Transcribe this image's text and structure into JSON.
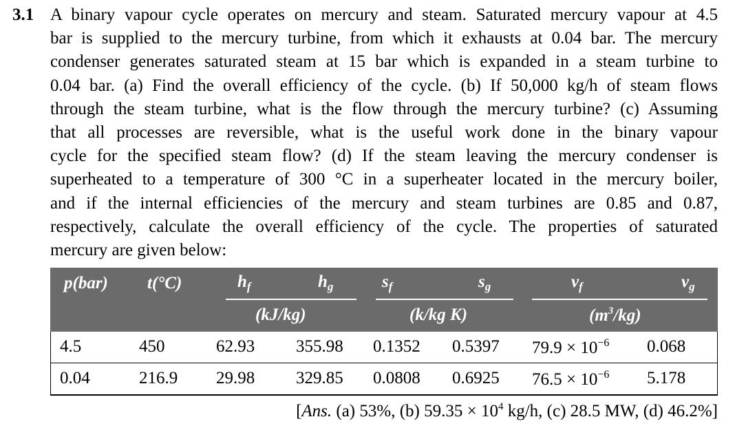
{
  "problem": {
    "number": "3.1",
    "lines": [
      "A binary vapour cycle operates on mercury and steam. Saturated mercury vapour at 4.5",
      "bar is supplied to the mercury turbine, from which it exhausts at 0.04 bar. The mercury",
      "condenser generates saturated steam at 15 bar which is expanded in a steam turbine to",
      "0.04 bar. (a) Find the overall efficiency of the cycle. (b) If 50,000 kg/h of steam flows",
      "through the steam turbine, what is the flow through the mercury turbine? (c) Assuming",
      "that all processes are reversible, what is the useful work done in the binary vapour",
      "cycle for the specified steam flow? (d) If the steam leaving the mercury condenser is",
      "superheated to a temperature of 300 °C in a superheater located in the mercury boiler,",
      "and if the internal efficiencies of the mercury and steam turbines are 0.85 and 0.87,",
      "respectively, calculate the overall efficiency of the cycle. The properties of saturated",
      "mercury are given below:"
    ]
  },
  "table": {
    "headers": {
      "p": "p(bar)",
      "t": "t(°C)",
      "hf_base": "h",
      "hf_sub": "f",
      "hg_base": "h",
      "hg_sub": "g",
      "sf_base": "s",
      "sf_sub": "f",
      "sg_base": "s",
      "sg_sub": "g",
      "vf_base": "v",
      "vf_sub": "f",
      "vg_base": "v",
      "vg_sub": "g",
      "unit_h": "(kJ/kg)",
      "unit_s": "(k/kg K)",
      "unit_v_pre": "(m",
      "unit_v_sup": "3",
      "unit_v_post": "/kg)"
    },
    "rows": [
      {
        "p": "4.5",
        "t": "450",
        "hf": "62.93",
        "hg": "355.98",
        "sf": "0.1352",
        "sg": "0.5397",
        "vf_mant": "79.9 × 10",
        "vf_exp": "−6",
        "vg": "0.068"
      },
      {
        "p": "0.04",
        "t": "216.9",
        "hf": "29.98",
        "hg": "329.85",
        "sf": "0.0808",
        "sg": "0.6925",
        "vf_mant": "76.5 × 10",
        "vf_exp": "−6",
        "vg": "5.178"
      }
    ]
  },
  "answer": {
    "open": "[",
    "label": "Ans.",
    "part_a": " (a) 53%, (b) 59.35 × 10",
    "exp": "4",
    "rest": " kg/h, (c) 28.5 MW, (d) 46.2%]"
  }
}
